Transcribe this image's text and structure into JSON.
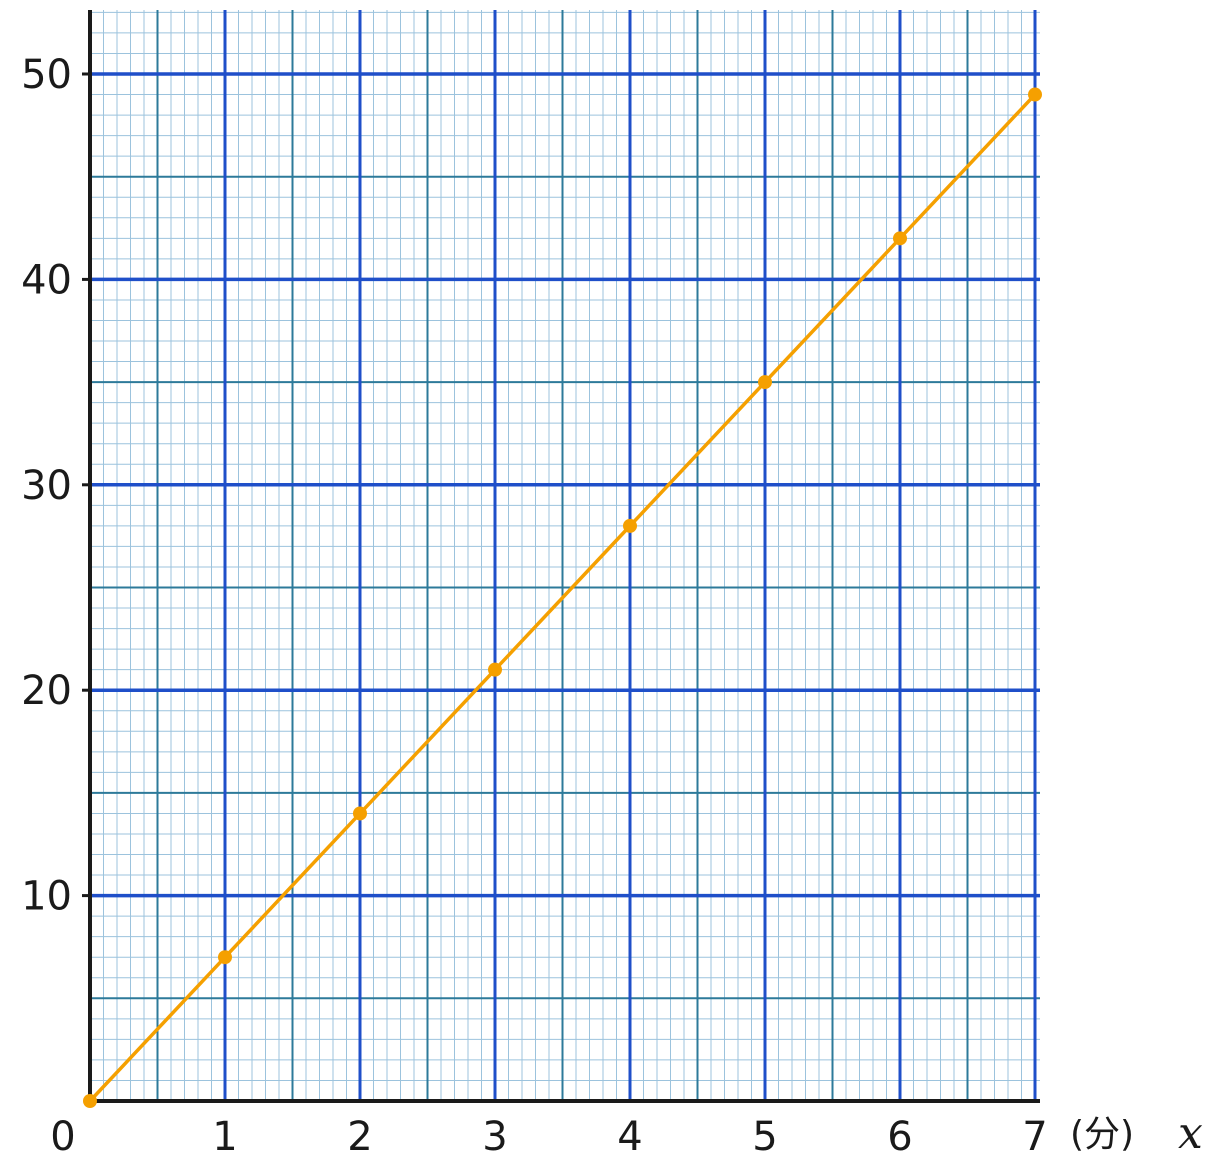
{
  "chart_data": {
    "type": "line",
    "title": "",
    "xlabel": "(分)",
    "x_variable": "x",
    "ylabel": "",
    "xlim": [
      0,
      7
    ],
    "ylim": [
      0,
      50
    ],
    "x_ticks": [
      0,
      1,
      2,
      3,
      4,
      5,
      6,
      7
    ],
    "y_ticks": [
      10,
      20,
      30,
      40,
      50
    ],
    "x_tick_labels": [
      "0",
      "1",
      "2",
      "3",
      "4",
      "5",
      "6",
      "7"
    ],
    "y_tick_labels": [
      "10",
      "20",
      "30",
      "40",
      "50"
    ],
    "grid": true,
    "series": [
      {
        "name": "",
        "color": "#f5a000",
        "x": [
          0,
          1,
          2,
          3,
          4,
          5,
          6,
          7
        ],
        "y": [
          0,
          7,
          14,
          21,
          28,
          35,
          42,
          49
        ]
      }
    ]
  },
  "colors": {
    "major_grid": "#1f4fc9",
    "half_grid": "#2d7a9a",
    "minor_grid": "#9cc3dd",
    "axis": "#1a1a1a"
  }
}
